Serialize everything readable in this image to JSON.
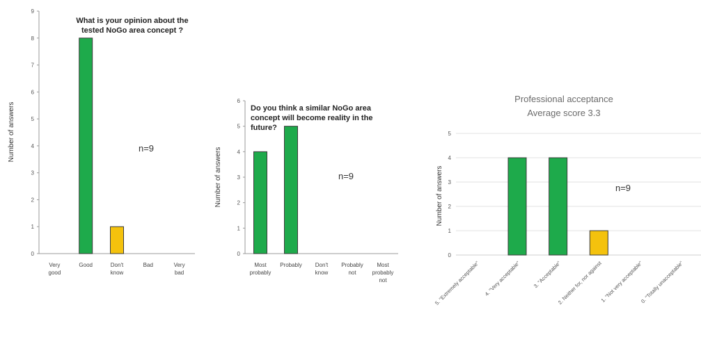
{
  "chart_data": [
    {
      "type": "bar",
      "title_lines": [
        "What is your opinion about the",
        "tested NoGo area concept ?"
      ],
      "ylabel": "Number of answers",
      "ylim": [
        0,
        9
      ],
      "yticks": [
        0,
        1,
        2,
        3,
        4,
        5,
        6,
        7,
        8,
        9
      ],
      "categories": [
        [
          "Very",
          "good"
        ],
        [
          "Good"
        ],
        [
          "Don't",
          "know"
        ],
        [
          "Bad"
        ],
        [
          "Very",
          "bad"
        ]
      ],
      "values": [
        0,
        8,
        1,
        0,
        0
      ],
      "bar_colors": [
        "#1eaa4b",
        "#1eaa4b",
        "#f4c20d",
        "#1eaa4b",
        "#1eaa4b"
      ],
      "annotation": "n=9",
      "grid": false
    },
    {
      "type": "bar",
      "title_lines": [
        "Do you think a similar NoGo area",
        "concept will become reality in the",
        "future?"
      ],
      "ylabel": "Number of answers",
      "ylim": [
        0,
        6
      ],
      "yticks": [
        0,
        1,
        2,
        3,
        4,
        5,
        6
      ],
      "categories": [
        [
          "Most",
          "probably"
        ],
        [
          "Probably"
        ],
        [
          "Don't",
          "know"
        ],
        [
          "Probably",
          "not"
        ],
        [
          "Most",
          "probably",
          "not"
        ]
      ],
      "values": [
        4,
        5,
        0,
        0,
        0
      ],
      "bar_colors": [
        "#1eaa4b",
        "#1eaa4b",
        "#1eaa4b",
        "#1eaa4b",
        "#1eaa4b"
      ],
      "annotation": "n=9",
      "grid": false
    },
    {
      "type": "bar",
      "title_lines": [
        "Professional acceptance",
        "Average score 3.3"
      ],
      "ylabel": "Number of answers",
      "ylim": [
        0,
        5
      ],
      "yticks": [
        0,
        1,
        2,
        3,
        4,
        5
      ],
      "categories": [
        "5. \"Extremely acceptable\"",
        "4. \"Very acceptable\"",
        "3. \"Acceptable\"",
        "2. Neither for, nor against",
        "1. \"Not very acceptable\"",
        "0. \"Totally unacceptable\""
      ],
      "values": [
        0,
        4,
        4,
        1,
        0,
        0
      ],
      "bar_colors": [
        "#1eaa4b",
        "#1eaa4b",
        "#1eaa4b",
        "#f4c20d",
        "#1eaa4b",
        "#1eaa4b"
      ],
      "annotation": "n=9",
      "grid": true
    }
  ]
}
